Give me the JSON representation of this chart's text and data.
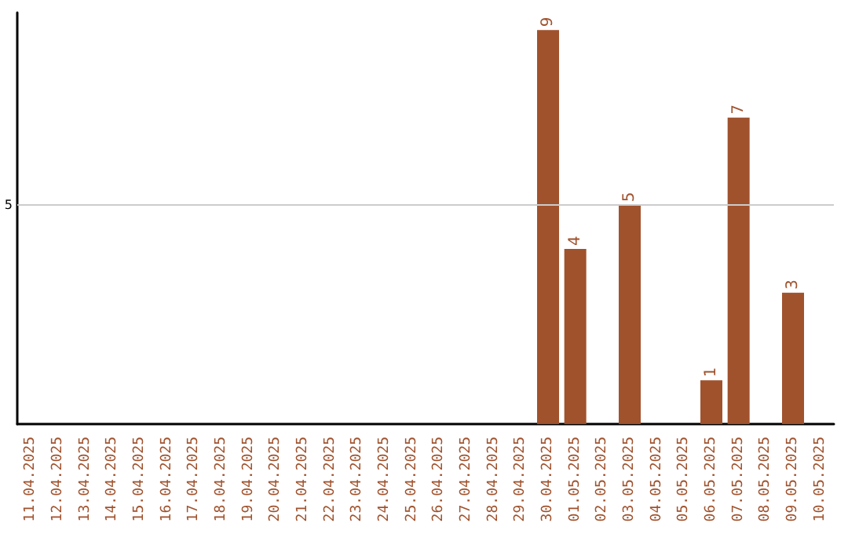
{
  "chart_data": {
    "type": "bar",
    "categories": [
      "11.04.2025",
      "12.04.2025",
      "13.04.2025",
      "14.04.2025",
      "15.04.2025",
      "16.04.2025",
      "17.04.2025",
      "18.04.2025",
      "19.04.2025",
      "20.04.2025",
      "21.04.2025",
      "22.04.2025",
      "23.04.2025",
      "24.04.2025",
      "25.04.2025",
      "26.04.2025",
      "27.04.2025",
      "28.04.2025",
      "29.04.2025",
      "30.04.2025",
      "01.05.2025",
      "02.05.2025",
      "03.05.2025",
      "04.05.2025",
      "05.05.2025",
      "06.05.2025",
      "07.05.2025",
      "08.05.2025",
      "09.05.2025",
      "10.05.2025"
    ],
    "values": [
      null,
      null,
      null,
      null,
      null,
      null,
      null,
      null,
      null,
      null,
      null,
      null,
      null,
      null,
      null,
      null,
      null,
      null,
      null,
      9,
      4,
      null,
      5,
      null,
      null,
      1,
      7,
      null,
      3,
      null
    ],
    "value_labels": [
      null,
      null,
      null,
      null,
      null,
      null,
      null,
      null,
      null,
      null,
      null,
      null,
      null,
      null,
      null,
      null,
      null,
      null,
      null,
      "9",
      "4",
      null,
      "5",
      null,
      null,
      "1",
      "7",
      null,
      "3",
      null
    ],
    "color": "#a0522d",
    "ylim": [
      0,
      9.4
    ],
    "ref_lines": [
      {
        "axis": "y",
        "value": 5,
        "label": "5",
        "color": "#cccccc"
      }
    ]
  }
}
